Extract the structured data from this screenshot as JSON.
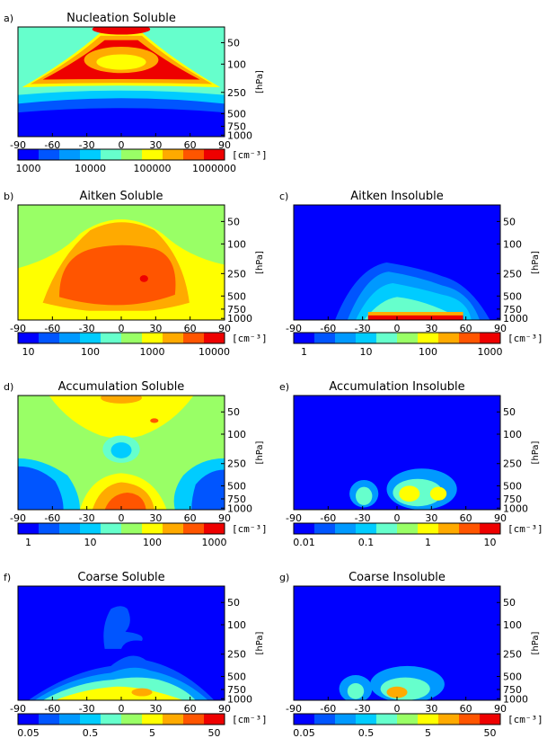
{
  "figure": {
    "level_colors": [
      "#0000ff",
      "#0055ff",
      "#0099ff",
      "#00ccff",
      "#66ffcc",
      "#99ff66",
      "#ffff00",
      "#ffaa00",
      "#ff5500",
      "#ee0000"
    ],
    "plot_background": "#0000ff",
    "panels": [
      {
        "letter": "a)",
        "title": "Nucleation Soluble",
        "unit": "[cm⁻³]",
        "xlabel": "",
        "ylabel": "hPa",
        "xticks": [
          "-90",
          "-60",
          "-30",
          "0",
          "30",
          "60",
          "90"
        ],
        "yticks": [
          "50",
          "100",
          "250",
          "500",
          "750",
          "1000"
        ],
        "colorbar_labels": [
          "1000",
          "10000",
          "100000",
          "1000000"
        ],
        "chart_data": {
          "type": "heatmap",
          "x": "latitude",
          "xlim": [
            -90,
            90
          ],
          "ylim": [
            1000,
            50
          ],
          "levels": "10 color bands, log spaced from 1000 to 1000000 cm-3",
          "description_values": "max (~1000000) near 250 hPa in tropics and subtropics; min (~1000) below 750 hPa at high latitudes"
        }
      },
      {
        "letter": "b)",
        "title": "Aitken Soluble",
        "unit": "[cm⁻³]",
        "xlabel": "",
        "ylabel": "hPa",
        "xticks": [
          "-90",
          "-60",
          "-30",
          "0",
          "30",
          "60",
          "90"
        ],
        "yticks": [
          "50",
          "100",
          "250",
          "500",
          "750",
          "1000"
        ],
        "colorbar_labels": [
          "10",
          "100",
          "1000",
          "10000"
        ],
        "chart_data": {
          "type": "heatmap",
          "xlim": [
            -90,
            90
          ],
          "ylim": [
            1000,
            50
          ],
          "levels": "log spaced 10 to 10000 cm-3"
        }
      },
      {
        "letter": "c)",
        "title": "Aitken Insoluble",
        "unit": "[cm⁻³]",
        "xlabel": "",
        "ylabel": "hPa",
        "xticks": [
          "-90",
          "-60",
          "-30",
          "0",
          "30",
          "60",
          "90"
        ],
        "yticks": [
          "50",
          "100",
          "250",
          "500",
          "750",
          "1000"
        ],
        "colorbar_labels": [
          "1",
          "10",
          "100",
          "1000"
        ],
        "chart_data": {
          "type": "heatmap",
          "xlim": [
            -90,
            90
          ],
          "ylim": [
            1000,
            50
          ],
          "levels": "log spaced 1 to 1000 cm-3"
        }
      },
      {
        "letter": "d)",
        "title": "Accumulation Soluble",
        "unit": "[cm⁻³]",
        "xlabel": "",
        "ylabel": "hPa",
        "xticks": [
          "-90",
          "-60",
          "-30",
          "0",
          "30",
          "60",
          "90"
        ],
        "yticks": [
          "50",
          "100",
          "250",
          "500",
          "750",
          "1000"
        ],
        "colorbar_labels": [
          "1",
          "10",
          "100",
          "1000"
        ],
        "chart_data": {
          "type": "heatmap",
          "xlim": [
            -90,
            90
          ],
          "ylim": [
            1000,
            50
          ],
          "levels": "log spaced 1 to 1000 cm-3"
        }
      },
      {
        "letter": "e)",
        "title": "Accumulation Insoluble",
        "unit": "[cm⁻³]",
        "xlabel": "",
        "ylabel": "hPa",
        "xticks": [
          "-90",
          "-60",
          "-30",
          "0",
          "30",
          "60",
          "90"
        ],
        "yticks": [
          "50",
          "100",
          "250",
          "500",
          "750",
          "1000"
        ],
        "colorbar_labels": [
          "0.01",
          "0.1",
          "1",
          "10"
        ],
        "chart_data": {
          "type": "heatmap",
          "xlim": [
            -90,
            90
          ],
          "ylim": [
            1000,
            50
          ],
          "levels": "log spaced 0.01 to 10 cm-3"
        }
      },
      {
        "letter": "f)",
        "title": "Coarse Soluble",
        "unit": "[cm⁻³]",
        "xlabel": "",
        "ylabel": "hPa",
        "xticks": [
          "-90",
          "-60",
          "-30",
          "0",
          "30",
          "60",
          "90"
        ],
        "yticks": [
          "50",
          "100",
          "250",
          "500",
          "750",
          "1000"
        ],
        "colorbar_labels": [
          "0.05",
          "0.5",
          "5",
          "50"
        ],
        "chart_data": {
          "type": "heatmap",
          "xlim": [
            -90,
            90
          ],
          "ylim": [
            1000,
            50
          ],
          "levels": "log spaced 0.05 to 50 cm-3"
        }
      },
      {
        "letter": "g)",
        "title": "Coarse Insoluble",
        "unit": "[cm⁻³]",
        "xlabel": "",
        "ylabel": "hPa",
        "xticks": [
          "-90",
          "-60",
          "-30",
          "0",
          "30",
          "60",
          "90"
        ],
        "yticks": [
          "50",
          "100",
          "250",
          "500",
          "750",
          "1000"
        ],
        "colorbar_labels": [
          "0.05",
          "0.5",
          "5",
          "50"
        ],
        "chart_data": {
          "type": "heatmap",
          "xlim": [
            -90,
            90
          ],
          "ylim": [
            1000,
            50
          ],
          "levels": "log spaced 0.05 to 50 cm-3"
        }
      }
    ]
  }
}
